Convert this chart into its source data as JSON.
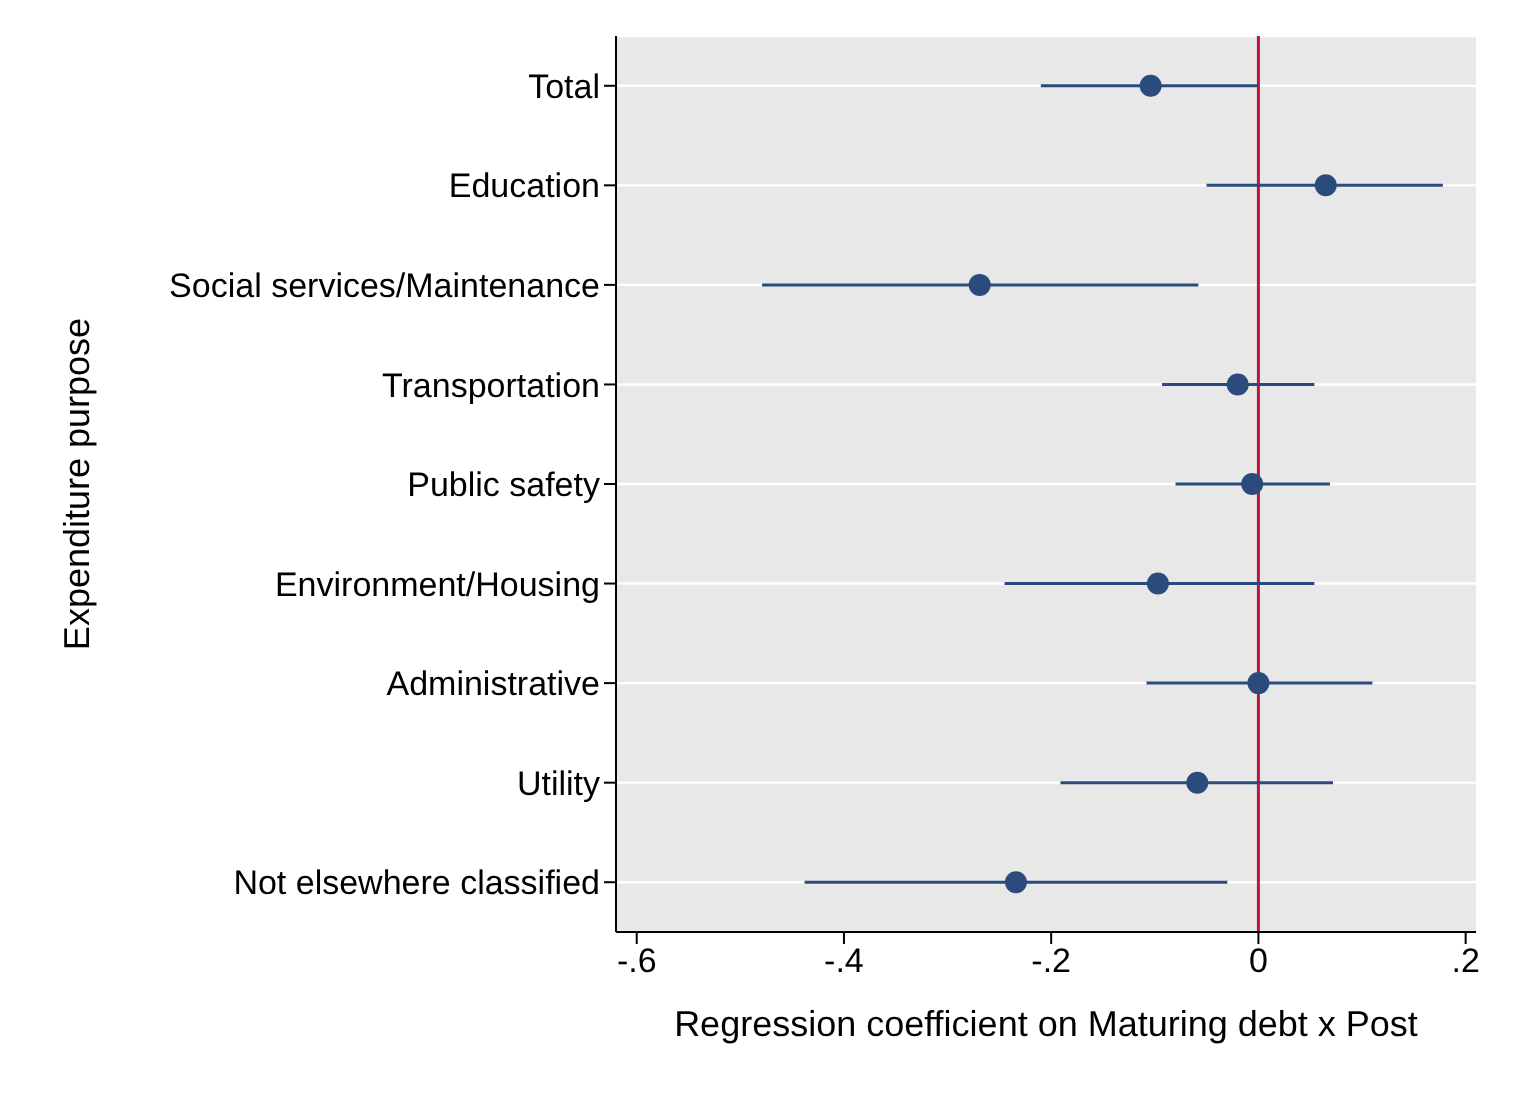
{
  "chart_data": {
    "type": "scatter",
    "orientation": "horizontal",
    "xlabel": "Regression coefficient on Maturing debt x Post",
    "ylabel": "Expenditure purpose",
    "categories": [
      "Total",
      "Education",
      "Social services/Maintenance",
      "Transportation",
      "Public safety",
      "Environment/Housing",
      "Administrative",
      "Utility",
      "Not elsewhere classified"
    ],
    "series": [
      {
        "color": "#2b4b7d",
        "values": [
          -0.104,
          0.065,
          -0.269,
          -0.02,
          -0.006,
          -0.097,
          0.0,
          -0.059,
          -0.234
        ],
        "errors": [
          [
            -0.21,
            0.0
          ],
          [
            -0.05,
            0.178
          ],
          [
            -0.479,
            -0.058
          ],
          [
            -0.093,
            0.054
          ],
          [
            -0.08,
            0.069
          ],
          [
            -0.245,
            0.054
          ],
          [
            -0.108,
            0.11
          ],
          [
            -0.191,
            0.072
          ],
          [
            -0.438,
            -0.03
          ]
        ]
      }
    ],
    "xlim": [
      -0.62,
      0.21
    ],
    "xticks": [
      {
        "value": -0.6,
        "label": "-.6"
      },
      {
        "value": -0.4,
        "label": "-.4"
      },
      {
        "value": -0.2,
        "label": "-.2"
      },
      {
        "value": 0,
        "label": "0"
      },
      {
        "value": 0.2,
        "label": ".2"
      }
    ],
    "ref_lines": [
      {
        "axis": "x",
        "value": 0,
        "color": "#c0143c"
      }
    ],
    "grid": "y",
    "marker": "circle"
  }
}
